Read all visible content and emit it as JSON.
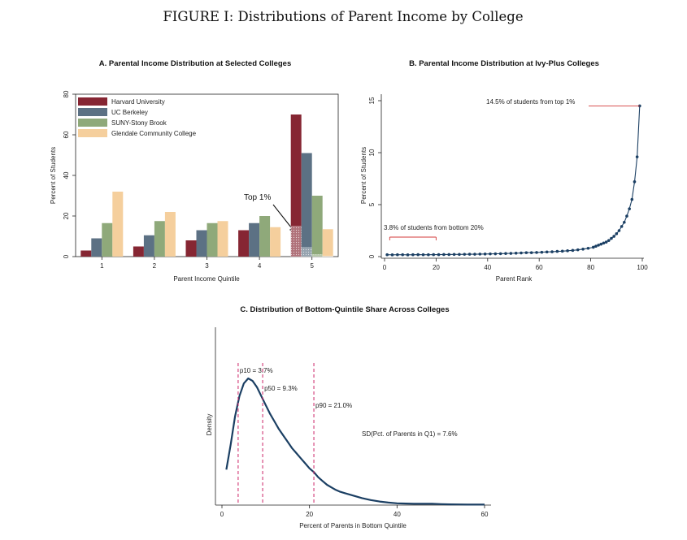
{
  "figure_title": "FIGURE I: Distributions of Parent Income by College",
  "colors": {
    "harvard": "#862633",
    "berkeley": "#5c7184",
    "suny": "#8fa97a",
    "glendale": "#f5cf9d",
    "line": "#1b3f63",
    "dashed": "#cc2266",
    "annot_red": "#d33a3a"
  },
  "chart_data": [
    {
      "type": "bar",
      "title": "A. Parental Income Distribution at Selected Colleges",
      "xlabel": "Parent Income Quintile",
      "ylabel": "Percent of Students",
      "categories": [
        "1",
        "2",
        "3",
        "4",
        "5"
      ],
      "ylim": [
        0,
        80
      ],
      "yticks": [
        "0",
        "20",
        "40",
        "60",
        "80"
      ],
      "series": [
        {
          "name": "Harvard University",
          "color_key": "harvard",
          "values": [
            3,
            5,
            8,
            13,
            70
          ],
          "top1": 15
        },
        {
          "name": "UC Berkeley",
          "color_key": "berkeley",
          "values": [
            9,
            10.5,
            13,
            16.5,
            51
          ],
          "top1": 4.5
        },
        {
          "name": "SUNY-Stony Brook",
          "color_key": "suny",
          "values": [
            16.5,
            17.5,
            16.5,
            20,
            30
          ],
          "top1": 1
        },
        {
          "name": "Glendale Community College",
          "color_key": "glendale",
          "values": [
            32,
            22,
            17.5,
            14.5,
            13.5
          ],
          "top1": 0.3
        }
      ],
      "annotation": "Top 1%",
      "legend_position": "top-left"
    },
    {
      "type": "line",
      "title": "B. Parental Income Distribution at Ivy-Plus Colleges",
      "xlabel": "Parent Rank",
      "ylabel": "Percent of Students",
      "xlim": [
        0,
        100
      ],
      "ylim": [
        0,
        15
      ],
      "xticks": [
        "0",
        "20",
        "40",
        "60",
        "80",
        "100"
      ],
      "yticks": [
        "0",
        "5",
        "10",
        "15"
      ],
      "x": [
        1,
        3,
        5,
        7,
        9,
        11,
        13,
        15,
        17,
        19,
        21,
        23,
        25,
        27,
        29,
        31,
        33,
        35,
        37,
        39,
        41,
        43,
        45,
        47,
        49,
        51,
        53,
        55,
        57,
        59,
        61,
        63,
        65,
        67,
        69,
        71,
        73,
        75,
        77,
        79,
        81,
        82,
        83,
        84,
        85,
        86,
        87,
        88,
        89,
        90,
        91,
        92,
        93,
        94,
        95,
        96,
        97,
        98,
        99
      ],
      "y": [
        0.18,
        0.17,
        0.18,
        0.18,
        0.17,
        0.18,
        0.19,
        0.18,
        0.18,
        0.19,
        0.19,
        0.2,
        0.2,
        0.21,
        0.21,
        0.22,
        0.23,
        0.23,
        0.24,
        0.25,
        0.26,
        0.27,
        0.28,
        0.3,
        0.31,
        0.33,
        0.35,
        0.38,
        0.38,
        0.4,
        0.42,
        0.45,
        0.46,
        0.5,
        0.52,
        0.56,
        0.6,
        0.65,
        0.72,
        0.8,
        0.9,
        1.0,
        1.1,
        1.2,
        1.3,
        1.4,
        1.55,
        1.75,
        1.95,
        2.2,
        2.5,
        2.9,
        3.3,
        3.9,
        4.6,
        5.5,
        7.2,
        9.6,
        14.5
      ],
      "annotations": [
        "14.5% of students from top 1%",
        "3.8% of students from bottom 20%"
      ]
    },
    {
      "type": "line",
      "title": "C. Distribution of Bottom-Quintile Share Across Colleges",
      "xlabel": "Percent of Parents in Bottom Quintile",
      "ylabel": "Density",
      "xlim": [
        0,
        60
      ],
      "xticks": [
        "0",
        "20",
        "40",
        "60"
      ],
      "x": [
        1,
        2,
        3,
        4,
        5,
        6,
        7,
        8,
        9,
        10,
        11,
        12,
        13,
        14,
        15,
        16,
        17,
        18,
        19,
        20,
        21,
        22,
        23,
        24,
        25,
        26,
        27,
        28,
        30,
        32,
        34,
        36,
        38,
        40,
        42,
        44,
        46,
        48,
        50,
        52,
        54,
        56,
        58,
        60
      ],
      "y": [
        0.28,
        0.48,
        0.7,
        0.86,
        0.96,
        1.0,
        0.98,
        0.93,
        0.86,
        0.79,
        0.72,
        0.66,
        0.6,
        0.55,
        0.5,
        0.45,
        0.41,
        0.37,
        0.33,
        0.29,
        0.26,
        0.22,
        0.19,
        0.16,
        0.14,
        0.12,
        0.105,
        0.095,
        0.075,
        0.055,
        0.04,
        0.028,
        0.02,
        0.014,
        0.012,
        0.01,
        0.01,
        0.01,
        0.008,
        0.006,
        0.005,
        0.004,
        0.004,
        0.004
      ],
      "percentiles": [
        {
          "label": "p10 = 3.7%",
          "value": 3.7
        },
        {
          "label": "p50 = 9.3%",
          "value": 9.3
        },
        {
          "label": "p90 = 21.0%",
          "value": 21.0
        }
      ],
      "sd_label": "SD(Pct. of Parents in Q1) = 7.6%"
    }
  ]
}
